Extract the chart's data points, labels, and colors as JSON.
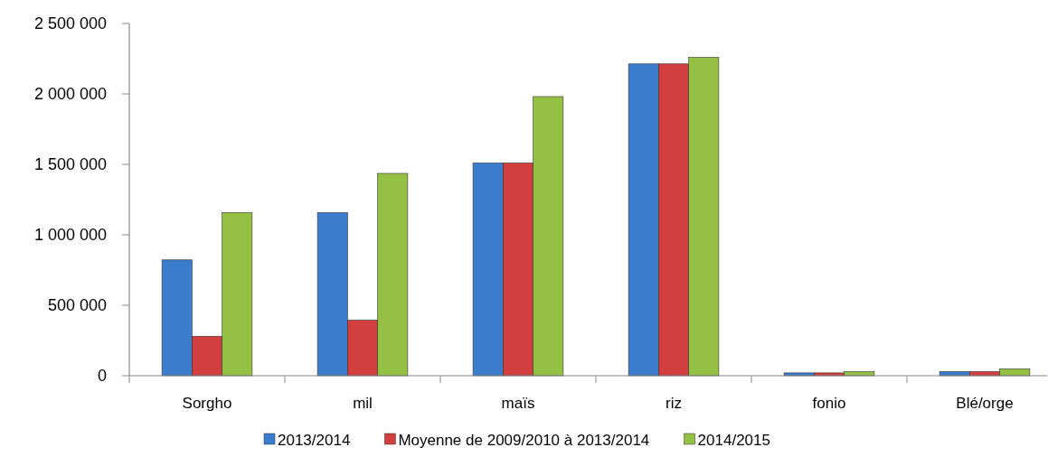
{
  "chart_data": {
    "type": "bar",
    "categories": [
      "Sorgho",
      "mil",
      "maïs",
      "riz",
      "fonio",
      "Blé/orge"
    ],
    "series": [
      {
        "name": "2013/2014",
        "color": "#3c7ccc",
        "values": [
          822000,
          1158000,
          1510000,
          2213000,
          20000,
          29000
        ]
      },
      {
        "name": "Moyenne de 2009/2010 à 2013/2014",
        "color": "#d23f3e",
        "values": [
          280000,
          394000,
          1510000,
          2213000,
          20000,
          29000
        ]
      },
      {
        "name": "2014/2015",
        "color": "#94c043",
        "values": [
          1158000,
          1436000,
          1981000,
          2260000,
          29000,
          48000
        ]
      }
    ],
    "ylim": [
      0,
      2500000
    ],
    "yticks": [
      {
        "value": 0,
        "label": "0"
      },
      {
        "value": 500000,
        "label": "500 000"
      },
      {
        "value": 1000000,
        "label": "1 000 000"
      },
      {
        "value": 1500000,
        "label": "1 500 000"
      },
      {
        "value": 2000000,
        "label": "2 000 000"
      },
      {
        "value": 2500000,
        "label": "2 500 000"
      }
    ],
    "legend": "bottom",
    "grid": false
  }
}
